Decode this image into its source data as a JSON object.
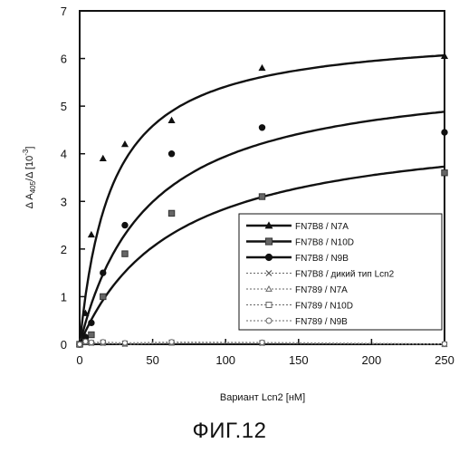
{
  "caption": "ФИГ.12",
  "chart_data": {
    "type": "scatter",
    "title": "",
    "xlabel": "Вариант Lcn2 [нМ]",
    "ylabel": "Δ A405/Δ [10⁻³]",
    "ylabel_parts": {
      "a": "Δ A",
      "sub": "405",
      "b": "/Δ [10",
      "sup": "-3",
      "c": "]"
    },
    "xlim": [
      0,
      250
    ],
    "ylim": [
      0,
      7
    ],
    "xticks": [
      0,
      50,
      100,
      150,
      200,
      250
    ],
    "yticks": [
      0,
      1,
      2,
      3,
      4,
      5,
      6,
      7
    ],
    "grid": false,
    "legend_position": "lower-right",
    "series": [
      {
        "name": "FN7B8 / N7A",
        "marker": "triangle",
        "line": "solid",
        "fit": {
          "bmax": 6.6,
          "kd": 22
        },
        "points": [
          [
            0,
            0
          ],
          [
            2,
            0.2
          ],
          [
            4,
            0.65
          ],
          [
            8,
            2.3
          ],
          [
            16,
            3.9
          ],
          [
            31,
            4.2
          ],
          [
            63,
            4.7
          ],
          [
            125,
            5.8
          ],
          [
            250,
            6.05
          ]
        ]
      },
      {
        "name": "FN7B8 / N10D",
        "marker": "square",
        "line": "solid",
        "fit": {
          "bmax": 4.7,
          "kd": 65
        },
        "points": [
          [
            0,
            0
          ],
          [
            2,
            0.05
          ],
          [
            4,
            0.1
          ],
          [
            8,
            0.2
          ],
          [
            16,
            1.0
          ],
          [
            31,
            1.9
          ],
          [
            63,
            2.75
          ],
          [
            125,
            3.1
          ],
          [
            250,
            3.6
          ]
        ]
      },
      {
        "name": "FN7B8 / N9B",
        "marker": "circle",
        "line": "solid",
        "fit": {
          "bmax": 5.8,
          "kd": 47
        },
        "points": [
          [
            0,
            0
          ],
          [
            2,
            0.05
          ],
          [
            4,
            0.15
          ],
          [
            8,
            0.45
          ],
          [
            16,
            1.5
          ],
          [
            31,
            2.5
          ],
          [
            63,
            4.0
          ],
          [
            125,
            4.55
          ],
          [
            250,
            4.45
          ]
        ]
      },
      {
        "name": "FN7B8 / дикий тип Lcn2",
        "marker": "x",
        "line": "dotted",
        "points": [
          [
            0,
            0
          ],
          [
            4,
            0.05
          ],
          [
            8,
            0.02
          ],
          [
            16,
            0.02
          ],
          [
            31,
            0.0
          ],
          [
            63,
            0.03
          ],
          [
            125,
            0.02
          ],
          [
            250,
            0.0
          ]
        ]
      },
      {
        "name": "FN789 / N7A",
        "marker": "triangle-open",
        "line": "dotted",
        "points": [
          [
            0,
            0
          ],
          [
            4,
            0.04
          ],
          [
            8,
            0.02
          ],
          [
            16,
            0.02
          ],
          [
            31,
            0.0
          ],
          [
            63,
            0.02
          ],
          [
            125,
            0.02
          ],
          [
            250,
            0.0
          ]
        ]
      },
      {
        "name": "FN789 / N10D",
        "marker": "square-open",
        "line": "dotted",
        "points": [
          [
            0,
            0
          ],
          [
            4,
            0.05
          ],
          [
            8,
            0.03
          ],
          [
            16,
            0.04
          ],
          [
            31,
            0.02
          ],
          [
            63,
            0.04
          ],
          [
            125,
            0.03
          ],
          [
            250,
            0.0
          ]
        ]
      },
      {
        "name": "FN789 / N9B",
        "marker": "circle-open",
        "line": "dotted",
        "points": [
          [
            0,
            0
          ],
          [
            4,
            0.06
          ],
          [
            8,
            0.04
          ],
          [
            16,
            0.05
          ],
          [
            31,
            0.03
          ],
          [
            63,
            0.05
          ],
          [
            125,
            0.04
          ],
          [
            250,
            0.01
          ]
        ]
      }
    ]
  }
}
